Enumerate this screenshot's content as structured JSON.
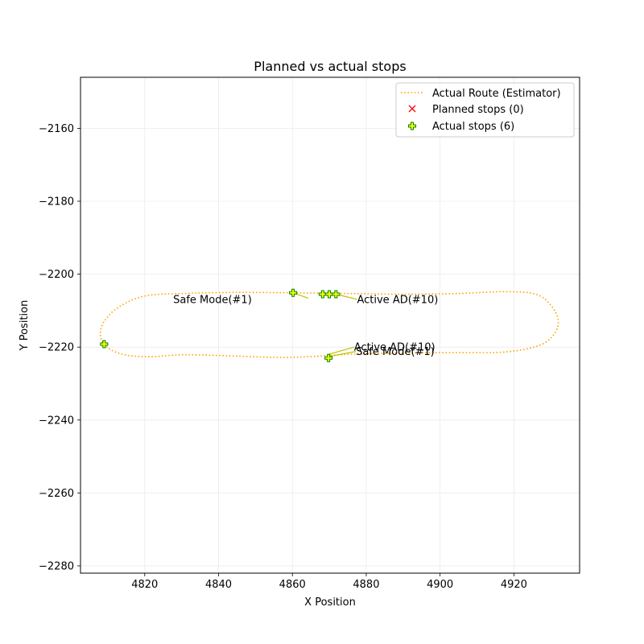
{
  "chart_data": {
    "type": "line",
    "title": "Planned vs actual stops",
    "xlabel": "X Position",
    "ylabel": "Y Position",
    "xlim": [
      4802.6,
      4937.8
    ],
    "ylim": [
      -2282,
      -2146
    ],
    "x_ticks": [
      4820,
      4840,
      4860,
      4880,
      4900,
      4920
    ],
    "y_ticks": [
      -2280,
      -2260,
      -2240,
      -2220,
      -2200,
      -2180,
      -2160
    ],
    "x_tick_labels": [
      "4820",
      "4840",
      "4860",
      "4880",
      "4900",
      "4920"
    ],
    "y_tick_labels": [
      "−2280",
      "−2260",
      "−2240",
      "−2220",
      "−2200",
      "−2180",
      "−2160"
    ],
    "grid": true,
    "legend_position": "top-right",
    "colors": {
      "route": "#ffa500",
      "planned": "#ff0000",
      "actual_fill": "#ffff00",
      "actual_edge": "#008000",
      "annotation": "#bfbf00",
      "grid": "#ebebeb"
    },
    "series": [
      {
        "name": "Actual Route (Estimator)",
        "kind": "line",
        "style": "dotted",
        "x": [
          4830,
          4845,
          4860,
          4875,
          4890,
          4905,
          4918,
          4926,
          4930,
          4932,
          4931,
          4927,
          4918,
          4905,
          4890,
          4875,
          4865,
          4855,
          4840,
          4830,
          4822,
          4815,
          4810,
          4808,
          4809,
          4813,
          4820,
          4830
        ],
        "y": [
          -2205.3,
          -2205.0,
          -2205.1,
          -2205.3,
          -2205.5,
          -2205.3,
          -2204.8,
          -2205.5,
          -2208.5,
          -2212.5,
          -2216.3,
          -2219.5,
          -2221.3,
          -2221.5,
          -2221.6,
          -2222.0,
          -2222.6,
          -2222.8,
          -2222.3,
          -2222.1,
          -2222.6,
          -2222.2,
          -2220.2,
          -2217.0,
          -2213.0,
          -2209.0,
          -2206.0,
          -2205.3
        ]
      },
      {
        "name": "Planned stops (0)",
        "kind": "scatter",
        "marker": "x",
        "x": [],
        "y": []
      },
      {
        "name": "Actual stops (6)",
        "kind": "scatter",
        "marker": "P",
        "x": [
          4809.0,
          4860.2,
          4868.2,
          4870.0,
          4871.8,
          4869.8
        ],
        "y": [
          -2219.2,
          -2205.1,
          -2205.5,
          -2205.5,
          -2205.5,
          -2223.0
        ]
      }
    ],
    "annotations": [
      {
        "text": "Safe Mode(#1)",
        "point": [
          4860.2,
          -2205.1
        ],
        "text_pos": [
          4849.0,
          -2206.9
        ],
        "ha": "right",
        "leader": [
          4864.3,
          -2206.6
        ]
      },
      {
        "text": "Active AD(#10)",
        "point": [
          4871.8,
          -2205.5
        ],
        "text_pos": [
          4877.5,
          -2206.9
        ],
        "ha": "left",
        "leader": [
          4877.5,
          -2206.9
        ]
      },
      {
        "text": "Active AD(#10)",
        "point": [
          4869.8,
          -2222.0
        ],
        "text_pos": [
          4876.7,
          -2220.0
        ],
        "ha": "left",
        "leader": [
          4876.7,
          -2220.0
        ]
      },
      {
        "text": "Safe Mode(#1)",
        "point": [
          4869.8,
          -2222.6
        ],
        "text_pos": [
          4877.2,
          -2221.2
        ],
        "ha": "left",
        "leader": [
          4877.2,
          -2221.2
        ]
      }
    ]
  }
}
